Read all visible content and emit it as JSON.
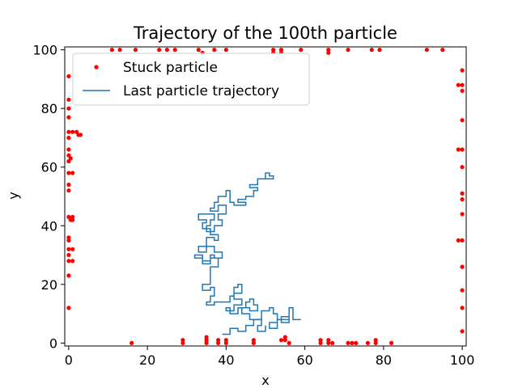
{
  "chart_data": {
    "type": "scatter",
    "title": "Trajectory of the 100th particle",
    "xlabel": "x",
    "ylabel": "y",
    "xlim": [
      -1,
      101
    ],
    "ylim": [
      -1,
      101
    ],
    "xticks": [
      0,
      20,
      40,
      60,
      80,
      100
    ],
    "yticks": [
      0,
      20,
      40,
      60,
      80,
      100
    ],
    "grid": false,
    "legend_position": "top-left",
    "series": [
      {
        "name": "Stuck particle",
        "kind": "points",
        "color": "#ff0000",
        "points": [
          [
            0,
            91
          ],
          [
            0,
            83
          ],
          [
            0,
            80
          ],
          [
            0,
            77
          ],
          [
            0,
            72
          ],
          [
            1,
            72
          ],
          [
            2,
            72
          ],
          [
            2.5,
            71
          ],
          [
            3,
            71
          ],
          [
            0,
            70
          ],
          [
            0,
            66
          ],
          [
            0,
            64
          ],
          [
            0.5,
            63
          ],
          [
            0,
            62
          ],
          [
            0,
            58
          ],
          [
            1,
            58
          ],
          [
            0,
            54
          ],
          [
            0,
            52
          ],
          [
            0,
            43
          ],
          [
            0.5,
            42
          ],
          [
            1,
            43
          ],
          [
            1,
            42
          ],
          [
            0,
            36
          ],
          [
            0,
            35
          ],
          [
            0,
            32
          ],
          [
            1,
            32
          ],
          [
            0,
            30
          ],
          [
            0,
            28
          ],
          [
            1,
            28
          ],
          [
            0,
            23
          ],
          [
            0,
            12
          ],
          [
            11,
            100
          ],
          [
            13,
            100
          ],
          [
            17,
            100
          ],
          [
            23,
            100
          ],
          [
            25,
            100
          ],
          [
            27,
            100
          ],
          [
            33,
            100
          ],
          [
            34,
            99
          ],
          [
            37,
            100
          ],
          [
            40,
            100
          ],
          [
            52,
            100
          ],
          [
            52,
            99
          ],
          [
            54,
            100
          ],
          [
            54,
            99
          ],
          [
            59,
            100
          ],
          [
            66,
            100
          ],
          [
            66,
            99
          ],
          [
            71,
            100
          ],
          [
            77,
            100
          ],
          [
            79,
            100
          ],
          [
            91,
            100
          ],
          [
            95,
            100
          ],
          [
            100,
            93
          ],
          [
            99,
            88
          ],
          [
            100,
            88
          ],
          [
            100,
            86
          ],
          [
            100,
            76
          ],
          [
            99,
            66
          ],
          [
            100,
            66
          ],
          [
            100,
            60
          ],
          [
            100,
            51
          ],
          [
            100,
            49
          ],
          [
            100,
            44
          ],
          [
            99,
            35
          ],
          [
            100,
            35
          ],
          [
            100,
            26
          ],
          [
            100,
            18
          ],
          [
            100,
            12
          ],
          [
            100,
            4
          ],
          [
            16,
            0
          ],
          [
            29,
            1
          ],
          [
            29,
            0
          ],
          [
            35,
            2
          ],
          [
            35,
            1
          ],
          [
            35,
            0
          ],
          [
            38,
            1
          ],
          [
            38,
            0
          ],
          [
            40,
            1
          ],
          [
            40,
            0
          ],
          [
            47,
            1
          ],
          [
            47,
            0
          ],
          [
            54,
            1
          ],
          [
            55,
            2
          ],
          [
            55,
            1
          ],
          [
            56,
            0
          ],
          [
            64,
            1
          ],
          [
            64,
            0
          ],
          [
            66,
            1
          ],
          [
            66,
            0
          ],
          [
            67,
            0
          ],
          [
            71,
            0
          ],
          [
            72,
            0
          ],
          [
            73,
            0
          ],
          [
            76,
            0
          ],
          [
            78,
            1
          ],
          [
            78,
            0
          ],
          [
            82,
            0
          ]
        ]
      },
      {
        "name": "Last particle trajectory",
        "kind": "line",
        "color": "#1f77b4",
        "points": [
          [
            49,
            56
          ],
          [
            52,
            56
          ],
          [
            52,
            57
          ],
          [
            51,
            57
          ],
          [
            51,
            58
          ],
          [
            50,
            58
          ],
          [
            50,
            56
          ],
          [
            48,
            56
          ],
          [
            48,
            54
          ],
          [
            46,
            54
          ],
          [
            46,
            53
          ],
          [
            48,
            53
          ],
          [
            48,
            52
          ],
          [
            47,
            52
          ],
          [
            47,
            50
          ],
          [
            45,
            50
          ],
          [
            45,
            49
          ],
          [
            43,
            49
          ],
          [
            43,
            48
          ],
          [
            45,
            48
          ],
          [
            45,
            47
          ],
          [
            42,
            47
          ],
          [
            42,
            48
          ],
          [
            41,
            48
          ],
          [
            41,
            52
          ],
          [
            40,
            52
          ],
          [
            40,
            50
          ],
          [
            38,
            50
          ],
          [
            38,
            48
          ],
          [
            37,
            48
          ],
          [
            37,
            46
          ],
          [
            36,
            46
          ],
          [
            36,
            45
          ],
          [
            38,
            45
          ],
          [
            38,
            47
          ],
          [
            40,
            47
          ],
          [
            40,
            44
          ],
          [
            38,
            44
          ],
          [
            38,
            42
          ],
          [
            39,
            42
          ],
          [
            39,
            40
          ],
          [
            37,
            40
          ],
          [
            37,
            38
          ],
          [
            35,
            38
          ],
          [
            35,
            40
          ],
          [
            36,
            40
          ],
          [
            36,
            42
          ],
          [
            37,
            42
          ],
          [
            37,
            44
          ],
          [
            33,
            44
          ],
          [
            33,
            42
          ],
          [
            35,
            42
          ],
          [
            35,
            41
          ],
          [
            34,
            41
          ],
          [
            34,
            39
          ],
          [
            36,
            39
          ],
          [
            36,
            37
          ],
          [
            38,
            37
          ],
          [
            38,
            35
          ],
          [
            37,
            35
          ],
          [
            37,
            36
          ],
          [
            35,
            36
          ],
          [
            35,
            33
          ],
          [
            33,
            33
          ],
          [
            33,
            31
          ],
          [
            35,
            31
          ],
          [
            35,
            33
          ],
          [
            37,
            33
          ],
          [
            37,
            31
          ],
          [
            39,
            31
          ],
          [
            39,
            29
          ],
          [
            36,
            29
          ],
          [
            36,
            27
          ],
          [
            34,
            27
          ],
          [
            34,
            29
          ],
          [
            32,
            29
          ],
          [
            32,
            30
          ],
          [
            34,
            30
          ],
          [
            34,
            28
          ],
          [
            36,
            28
          ],
          [
            36,
            30
          ],
          [
            37,
            30
          ],
          [
            37,
            29
          ],
          [
            38,
            29
          ],
          [
            38,
            26
          ],
          [
            36,
            26
          ],
          [
            36,
            20
          ],
          [
            34,
            20
          ],
          [
            34,
            18
          ],
          [
            36,
            18
          ],
          [
            36,
            19
          ],
          [
            37,
            19
          ],
          [
            37,
            16
          ],
          [
            36,
            16
          ],
          [
            36,
            14
          ],
          [
            35,
            14
          ],
          [
            35,
            13
          ],
          [
            37,
            13
          ],
          [
            37,
            14
          ],
          [
            41,
            14
          ],
          [
            41,
            16
          ],
          [
            42,
            16
          ],
          [
            42,
            19
          ],
          [
            43,
            19
          ],
          [
            43,
            20
          ],
          [
            44,
            20
          ],
          [
            44,
            17
          ],
          [
            42,
            17
          ],
          [
            42,
            15
          ],
          [
            44,
            15
          ],
          [
            44,
            13
          ],
          [
            42,
            13
          ],
          [
            42,
            11
          ],
          [
            40,
            11
          ],
          [
            40,
            12
          ],
          [
            41,
            12
          ],
          [
            41,
            10
          ],
          [
            43,
            10
          ],
          [
            43,
            12
          ],
          [
            45,
            12
          ],
          [
            45,
            14
          ],
          [
            46,
            14
          ],
          [
            46,
            15
          ],
          [
            47,
            15
          ],
          [
            47,
            13
          ],
          [
            48,
            13
          ],
          [
            48,
            11
          ],
          [
            46,
            11
          ],
          [
            46,
            12
          ],
          [
            44,
            12
          ],
          [
            44,
            10
          ],
          [
            46,
            10
          ],
          [
            46,
            8
          ],
          [
            49,
            8
          ],
          [
            49,
            11
          ],
          [
            51,
            11
          ],
          [
            51,
            12
          ],
          [
            52,
            12
          ],
          [
            52,
            10
          ],
          [
            53,
            10
          ],
          [
            53,
            7
          ],
          [
            51,
            7
          ],
          [
            51,
            5
          ],
          [
            53,
            5
          ],
          [
            53,
            8
          ],
          [
            56,
            8
          ],
          [
            56,
            9
          ],
          [
            54,
            9
          ],
          [
            54,
            7
          ],
          [
            56,
            7
          ],
          [
            56,
            12
          ],
          [
            57,
            12
          ],
          [
            57,
            8
          ],
          [
            59,
            8
          ]
        ]
      },
      {
        "name": "",
        "kind": "line",
        "color": "#1f77b4",
        "points": [
          [
            39,
            3
          ],
          [
            41,
            3
          ],
          [
            41,
            5
          ],
          [
            43,
            5
          ],
          [
            43,
            4
          ],
          [
            45,
            4
          ],
          [
            45,
            6
          ],
          [
            47,
            6
          ],
          [
            47,
            8
          ],
          [
            49,
            8
          ],
          [
            49,
            6
          ],
          [
            48,
            6
          ],
          [
            48,
            4
          ],
          [
            50,
            4
          ],
          [
            50,
            6
          ]
        ]
      }
    ]
  }
}
